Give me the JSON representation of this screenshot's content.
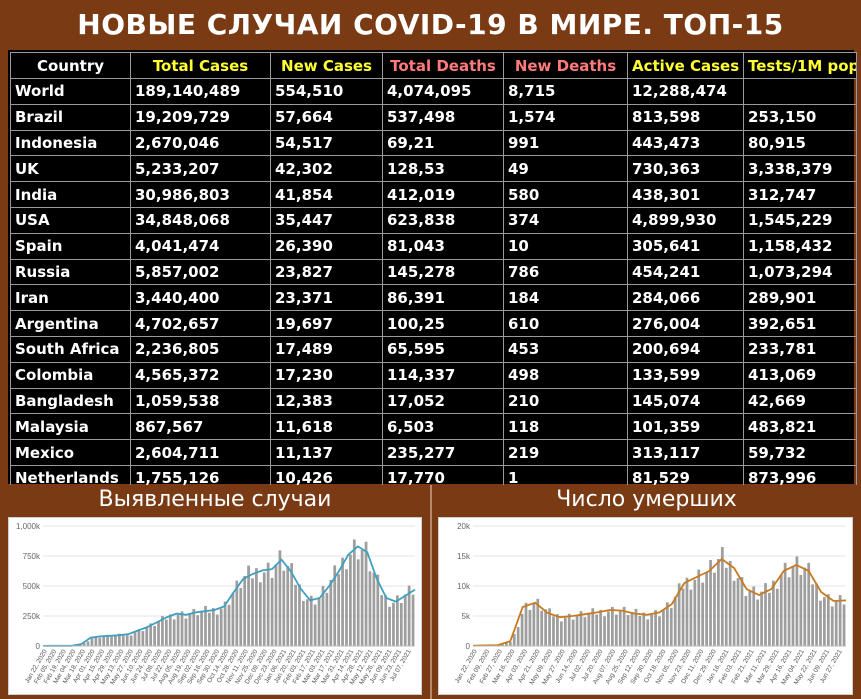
{
  "title": "НОВЫЕ СЛУЧАИ COVID-19 В МИРЕ. ТОП-15",
  "table": {
    "headers": [
      {
        "label": "Country",
        "color": "#ffffff"
      },
      {
        "label": "Total Cases",
        "color": "#ffff33"
      },
      {
        "label": "New Cases",
        "color": "#ffff33"
      },
      {
        "label": "Total Deaths",
        "color": "#ff7b7b"
      },
      {
        "label": "New Deaths",
        "color": "#ff7b7b"
      },
      {
        "label": "Active Cases",
        "color": "#ffff33"
      },
      {
        "label": "Tests/1M pop",
        "color": "#ffff33"
      }
    ],
    "rows": [
      [
        "World",
        "189,140,489",
        "554,510",
        "4,074,095",
        "8,715",
        "12,288,474",
        ""
      ],
      [
        "Brazil",
        "19,209,729",
        "57,664",
        "537,498",
        "1,574",
        "813,598",
        "253,150"
      ],
      [
        "Indonesia",
        "2,670,046",
        "54,517",
        "69,21",
        "991",
        "443,473",
        "80,915"
      ],
      [
        "UK",
        "5,233,207",
        "42,302",
        "128,53",
        "49",
        "730,363",
        "3,338,379"
      ],
      [
        "India",
        "30,986,803",
        "41,854",
        "412,019",
        "580",
        "438,301",
        "312,747"
      ],
      [
        "USA",
        "34,848,068",
        "35,447",
        "623,838",
        "374",
        "4,899,930",
        "1,545,229"
      ],
      [
        "Spain",
        "4,041,474",
        "26,390",
        "81,043",
        "10",
        "305,641",
        "1,158,432"
      ],
      [
        "Russia",
        "5,857,002",
        "23,827",
        "145,278",
        "786",
        "454,241",
        "1,073,294"
      ],
      [
        "Iran",
        "3,440,400",
        "23,371",
        "86,391",
        "184",
        "284,066",
        "289,901"
      ],
      [
        "Argentina",
        "4,702,657",
        "19,697",
        "100,25",
        "610",
        "276,004",
        "392,651"
      ],
      [
        "South Africa",
        "2,236,805",
        "17,489",
        "65,595",
        "453",
        "200,694",
        "233,781"
      ],
      [
        "Colombia",
        "4,565,372",
        "17,230",
        "114,337",
        "498",
        "133,599",
        "413,069"
      ],
      [
        "Bangladesh",
        "1,059,538",
        "12,383",
        "17,052",
        "210",
        "145,074",
        "42,669"
      ],
      [
        "Malaysia",
        "867,567",
        "11,618",
        "6,503",
        "118",
        "101,359",
        "483,821"
      ],
      [
        "Mexico",
        "2,604,711",
        "11,137",
        "235,277",
        "219",
        "313,117",
        "59,732"
      ],
      [
        "Netherlands",
        "1,755,126",
        "10,426",
        "17,770",
        "1",
        "81,529",
        "873,996"
      ]
    ]
  },
  "chart_data": [
    {
      "type": "bar",
      "panel_title": "Выявленные случаи",
      "line_color": "#3fa0c0",
      "bar_color": "#9e9e9e",
      "ylim": [
        0,
        1000000
      ],
      "y_ticks": [
        {
          "v": 0,
          "label": "0"
        },
        {
          "v": 250000,
          "label": "250k"
        },
        {
          "v": 500000,
          "label": "500k"
        },
        {
          "v": 750000,
          "label": "750k"
        },
        {
          "v": 1000000,
          "label": "1,000k"
        }
      ],
      "x_tick_labels": [
        "Jan 22, 2020",
        "Feb 05, 2020",
        "Feb 19, 2020",
        "Mar 04, 2020",
        "Mar 18, 2020",
        "Apr 01, 2020",
        "Apr 15, 2020",
        "Apr 29, 2020",
        "May 13, 2020",
        "May 27, 2020",
        "Jun 10, 2020",
        "Jun 24, 2020",
        "Jul 08, 2020",
        "Jul 22, 2020",
        "Aug 05, 2020",
        "Aug 19, 2020",
        "Sep 02, 2020",
        "Sep 16, 2020",
        "Sep 30, 2020",
        "Oct 14, 2020",
        "Oct 28, 2020",
        "Nov 11, 2020",
        "Nov 25, 2020",
        "Dec 09, 2020",
        "Dec 23, 2020",
        "Jan 06, 2021",
        "Jan 20, 2021",
        "Feb 03, 2021",
        "Feb 17, 2021",
        "Mar 03, 2021",
        "Mar 17, 2021",
        "Mar 31, 2021",
        "Apr 14, 2021",
        "Apr 28, 2021",
        "May 12, 2021",
        "May 26, 2021",
        "Jun 09, 2021",
        "Jun 23, 2021",
        "Jul 07, 2021"
      ],
      "x": [
        "2020-01-22",
        "2020-02-05",
        "2020-02-19",
        "2020-03-04",
        "2020-03-18",
        "2020-04-01",
        "2020-04-15",
        "2020-04-29",
        "2020-05-13",
        "2020-05-27",
        "2020-06-10",
        "2020-06-24",
        "2020-07-08",
        "2020-07-22",
        "2020-08-05",
        "2020-08-19",
        "2020-09-02",
        "2020-09-16",
        "2020-09-30",
        "2020-10-14",
        "2020-10-28",
        "2020-11-11",
        "2020-11-25",
        "2020-12-09",
        "2020-12-23",
        "2021-01-06",
        "2021-01-20",
        "2021-02-03",
        "2021-02-17",
        "2021-03-03",
        "2021-03-17",
        "2021-03-31",
        "2021-04-14",
        "2021-04-28",
        "2021-05-12",
        "2021-05-26",
        "2021-06-09",
        "2021-06-23",
        "2021-07-07",
        "2021-07-14"
      ],
      "values": [
        1000,
        2000,
        1500,
        2000,
        15000,
        70000,
        80000,
        85000,
        90000,
        100000,
        130000,
        160000,
        200000,
        240000,
        270000,
        260000,
        280000,
        290000,
        300000,
        330000,
        450000,
        560000,
        600000,
        630000,
        640000,
        720000,
        620000,
        480000,
        380000,
        400000,
        500000,
        620000,
        760000,
        830000,
        780000,
        560000,
        400000,
        370000,
        420000,
        470000
      ]
    },
    {
      "type": "bar",
      "panel_title": "Число умерших",
      "line_color": "#c87a1e",
      "bar_color": "#9e9e9e",
      "ylim": [
        0,
        20000
      ],
      "y_ticks": [
        {
          "v": 0,
          "label": "0"
        },
        {
          "v": 5000,
          "label": "5k"
        },
        {
          "v": 10000,
          "label": "10k"
        },
        {
          "v": 15000,
          "label": "15k"
        },
        {
          "v": 20000,
          "label": "20k"
        }
      ],
      "x_tick_labels": [
        "Jan 22, 2020",
        "Feb 09, 2020",
        "Feb 27, 2020",
        "Mar 16, 2020",
        "Apr 03, 2020",
        "Apr 21, 2020",
        "May 09, 2020",
        "May 27, 2020",
        "Jun 14, 2020",
        "Jul 02, 2020",
        "Jul 20, 2020",
        "Aug 07, 2020",
        "Aug 25, 2020",
        "Sep 12, 2020",
        "Sep 30, 2020",
        "Oct 18, 2020",
        "Nov 05, 2020",
        "Nov 23, 2020",
        "Dec 11, 2020",
        "Dec 29, 2020",
        "Jan 16, 2021",
        "Feb 03, 2021",
        "Feb 21, 2021",
        "Mar 11, 2021",
        "Mar 29, 2021",
        "Apr 16, 2021",
        "May 04, 2021",
        "May 22, 2021",
        "Jun 09, 2021",
        "Jun 27, 2021"
      ],
      "x": [
        "2020-01-22",
        "2020-02-09",
        "2020-02-27",
        "2020-03-16",
        "2020-04-03",
        "2020-04-21",
        "2020-05-09",
        "2020-05-27",
        "2020-06-14",
        "2020-07-02",
        "2020-07-20",
        "2020-08-07",
        "2020-08-25",
        "2020-09-12",
        "2020-09-30",
        "2020-10-18",
        "2020-11-05",
        "2020-11-23",
        "2020-12-11",
        "2020-12-29",
        "2021-01-16",
        "2021-02-03",
        "2021-02-21",
        "2021-03-11",
        "2021-03-29",
        "2021-04-16",
        "2021-05-04",
        "2021-05-22",
        "2021-06-09",
        "2021-06-27",
        "2021-07-14"
      ],
      "values": [
        50,
        100,
        150,
        800,
        6500,
        7200,
        5500,
        4800,
        5000,
        5300,
        5600,
        6000,
        5900,
        5400,
        5200,
        5600,
        7000,
        10500,
        11500,
        12500,
        14500,
        13000,
        9500,
        8500,
        9500,
        12500,
        13500,
        12500,
        9000,
        7500,
        7600
      ]
    }
  ]
}
